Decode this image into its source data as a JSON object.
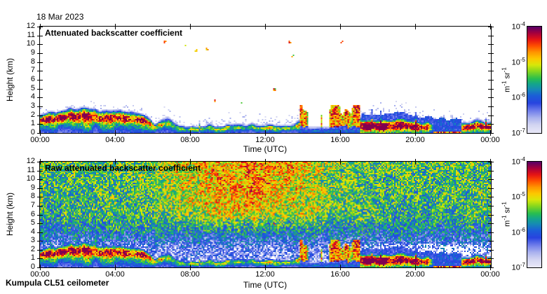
{
  "date_label": "18 Mar 2023",
  "footer_label": "Kumpula CL51 ceilometer",
  "colorbar": {
    "unit": "m^-1 sr^-1",
    "ticks": [
      "10^-4",
      "10^-5",
      "10^-6",
      "10^-7"
    ],
    "scale": "log",
    "range": [
      "1e-7",
      "1e-4"
    ]
  },
  "colormap": [
    [
      0.0,
      "#e8e8f8"
    ],
    [
      0.07,
      "#d4d6f2"
    ],
    [
      0.14,
      "#aab2ee"
    ],
    [
      0.21,
      "#6e7ceb"
    ],
    [
      0.28,
      "#2844e0"
    ],
    [
      0.35,
      "#1b5fd8"
    ],
    [
      0.41,
      "#168bb4"
    ],
    [
      0.46,
      "#14a58c"
    ],
    [
      0.51,
      "#28be50"
    ],
    [
      0.58,
      "#86d71e"
    ],
    [
      0.64,
      "#d8e70a"
    ],
    [
      0.7,
      "#fdc800"
    ],
    [
      0.76,
      "#ff9600"
    ],
    [
      0.82,
      "#ff5000"
    ],
    [
      0.88,
      "#e61414"
    ],
    [
      0.94,
      "#a8003c"
    ],
    [
      1.0,
      "#5a0064"
    ]
  ],
  "chart_data": [
    {
      "type": "heatmap",
      "title": "Attenuated backscatter coefficient",
      "xlabel": "Time (UTC)",
      "ylabel": "Height (km)",
      "x_ticks": [
        "00:00",
        "04:00",
        "08:00",
        "12:00",
        "16:00",
        "20:00",
        "00:00"
      ],
      "x_range_hours": [
        0,
        24
      ],
      "y_ticks": [
        0,
        1,
        2,
        3,
        4,
        5,
        6,
        7,
        8,
        9,
        10,
        11,
        12
      ],
      "ylim_km": [
        0,
        12
      ],
      "background": "white",
      "value_range": [
        "1e-7",
        "1e-4"
      ],
      "boundary_layer_top_km": {
        "hours": [
          0,
          0.4,
          0.9,
          1.3,
          1.8,
          2.3,
          2.8,
          3.3,
          3.8,
          4.3,
          4.7,
          5.1,
          5.5,
          5.8,
          6.1,
          6.5,
          7.0,
          7.4,
          8.0,
          9.0,
          10.0,
          11.0,
          12.0,
          12.8,
          13.5,
          13.9,
          14.3,
          14.8,
          15.2,
          15.6,
          16.0,
          16.4,
          16.8,
          17.2,
          17.8,
          18.4,
          19.0,
          19.6,
          20.0,
          20.4,
          20.8,
          21.3,
          21.9,
          22.4,
          22.8,
          23.3,
          23.7,
          24
        ],
        "km": [
          2.1,
          2.4,
          2.2,
          2.6,
          2.5,
          2.7,
          2.5,
          2.6,
          2.4,
          2.55,
          2.3,
          2.35,
          2.1,
          1.6,
          1.1,
          1.7,
          1.6,
          1.0,
          0.85,
          0.95,
          0.9,
          1.05,
          1.0,
          0.9,
          1.0,
          1.9,
          2.6,
          2.5,
          2.9,
          2.7,
          3.0,
          2.9,
          2.6,
          2.2,
          2.3,
          2.1,
          2.3,
          2.2,
          1.9,
          1.7,
          1.8,
          1.6,
          1.7,
          1.5,
          1.3,
          1.7,
          1.4,
          1.6
        ]
      },
      "signal_strength": {
        "hours": [
          0,
          5.6,
          6.0,
          7.2,
          13.6,
          13.9,
          17.0,
          17.3,
          20.6,
          20.9,
          22.3,
          22.6,
          24
        ],
        "value": [
          0.88,
          0.88,
          0.62,
          0.48,
          0.48,
          0.75,
          0.75,
          0.85,
          0.85,
          0.34,
          0.34,
          0.88,
          0.88
        ]
      },
      "peak_height_fraction": {
        "hours": [
          0,
          5.6,
          7.0,
          13.6,
          17.2,
          20.8,
          22.3,
          24
        ],
        "value": [
          0.72,
          0.72,
          0.6,
          0.6,
          0.4,
          0.4,
          0.5,
          0.5
        ]
      },
      "cloud_band": {
        "hours": [
          13.85,
          17.05
        ],
        "top_km_max": 3.2,
        "base_km": 0.5
      },
      "dark_blue_layer": {
        "hours": [
          20.9,
          22.4
        ],
        "top_km": 1.6
      },
      "high_cloud_specks": [
        {
          "hour": 6.6,
          "km": 10.4
        },
        {
          "hour": 7.6,
          "km": 9.9
        },
        {
          "hour": 8.2,
          "km": 9.5
        },
        {
          "hour": 8.8,
          "km": 9.7
        },
        {
          "hour": 9.3,
          "km": 3.8
        },
        {
          "hour": 10.7,
          "km": 3.7
        },
        {
          "hour": 12.4,
          "km": 5.1
        },
        {
          "hour": 13.2,
          "km": 10.4
        },
        {
          "hour": 13.4,
          "km": 8.8
        },
        {
          "hour": 15.9,
          "km": 10.3
        },
        {
          "hour": 16.0,
          "km": 10.5
        }
      ]
    },
    {
      "type": "heatmap",
      "title": "Raw attenuated backscatter coefficient",
      "xlabel": "Time (UTC)",
      "ylabel": "Height (km)",
      "x_ticks": [
        "00:00",
        "04:00",
        "08:00",
        "12:00",
        "16:00",
        "20:00",
        "00:00"
      ],
      "x_range_hours": [
        0,
        24
      ],
      "y_ticks": [
        0,
        1,
        2,
        3,
        4,
        5,
        6,
        7,
        8,
        9,
        10,
        11,
        12
      ],
      "ylim_km": [
        0,
        12
      ],
      "background": "noise",
      "value_range": [
        "1e-7",
        "1e-4"
      ],
      "noise_floor_profile": {
        "km": [
          0,
          1.8,
          4,
          6,
          12
        ],
        "level": [
          0.14,
          0.18,
          0.38,
          0.48,
          0.52
        ]
      },
      "daytime_noise_boost": {
        "hours": [
          6,
          16
        ],
        "peak_hour": 11,
        "applies_above_km": 3.5
      },
      "white_speckle_band": {
        "hours": [
          17,
          24
        ],
        "km": [
          0.9,
          2.7
        ]
      },
      "includes_signal_overlay": true
    }
  ]
}
